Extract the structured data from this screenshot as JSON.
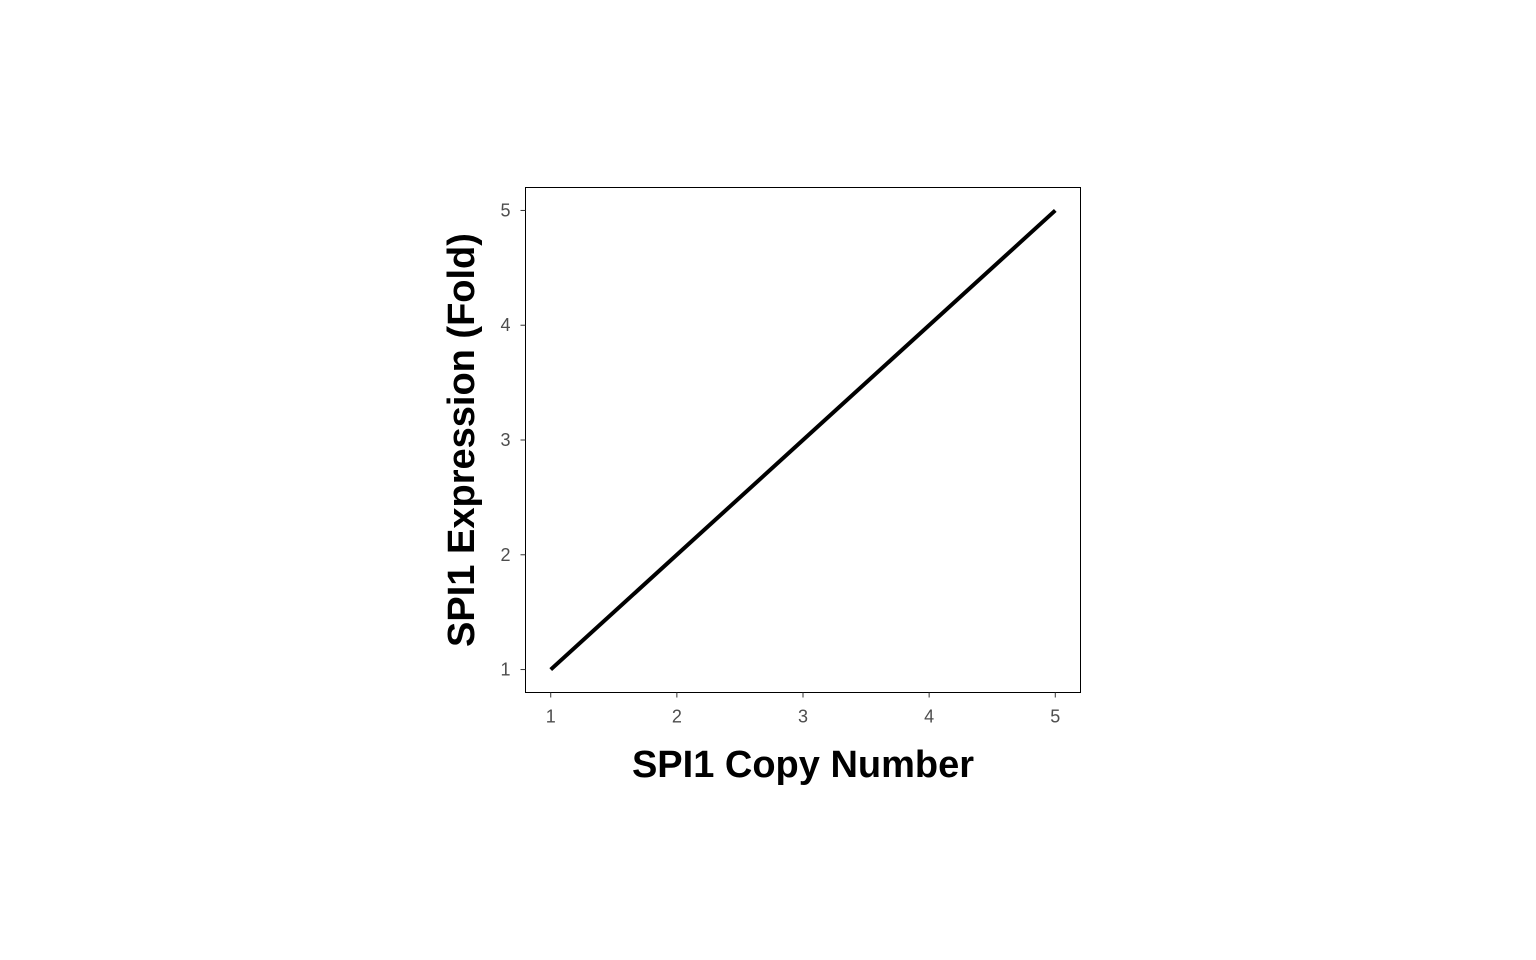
{
  "chart_data": {
    "type": "line",
    "title": "",
    "xlabel": "SPI1 Copy Number",
    "ylabel": "SPI1 Expression (Fold)",
    "xlim": [
      0.8,
      5.2
    ],
    "ylim": [
      0.8,
      5.2
    ],
    "x_ticks": [
      1,
      2,
      3,
      4,
      5
    ],
    "y_ticks": [
      1,
      2,
      3,
      4,
      5
    ],
    "grid": false,
    "legend": "none",
    "series": [
      {
        "x": [
          1,
          2,
          3,
          4,
          5
        ],
        "y": [
          1,
          2,
          3,
          4,
          5
        ],
        "color": "#000000"
      }
    ]
  }
}
